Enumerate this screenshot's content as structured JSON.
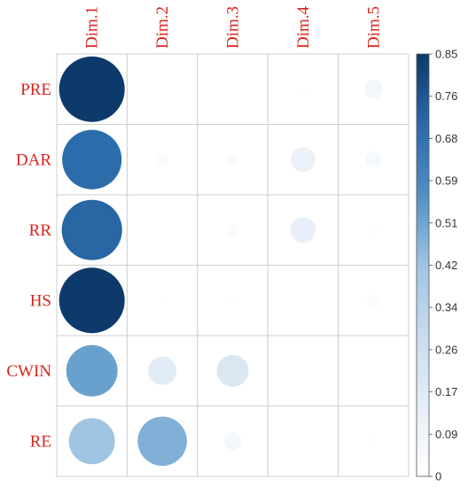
{
  "chart_data": {
    "type": "heatmap",
    "rows": [
      "PRE",
      "DAR",
      "RR",
      "HS",
      "CWIN",
      "RE"
    ],
    "columns": [
      "Dim.1",
      "Dim.2",
      "Dim.3",
      "Dim.4",
      "Dim.5"
    ],
    "values": [
      [
        0.85,
        0.0,
        0.0,
        0.01,
        0.07
      ],
      [
        0.7,
        0.03,
        0.03,
        0.12,
        0.05
      ],
      [
        0.72,
        0.0,
        0.03,
        0.13,
        0.02
      ],
      [
        0.85,
        0.01,
        0.01,
        0.0,
        0.03
      ],
      [
        0.52,
        0.16,
        0.2,
        0.0,
        0.0
      ],
      [
        0.42,
        0.48,
        0.06,
        0.0,
        0.01
      ]
    ],
    "color_scale": {
      "min": 0,
      "max": 0.85,
      "ticks": [
        "0.85",
        "0.76",
        "0.68",
        "0.59",
        "0.51",
        "0.42",
        "0.34",
        "0.26",
        "0.17",
        "0.09",
        "0"
      ],
      "colors": [
        "#ffffff",
        "#e6eef7",
        "#c7dcee",
        "#9fc4e3",
        "#4f90c4",
        "#2a6aa9",
        "#0d3a6b"
      ]
    },
    "label_color": "#d9261c",
    "grid": true,
    "legend": "right"
  }
}
